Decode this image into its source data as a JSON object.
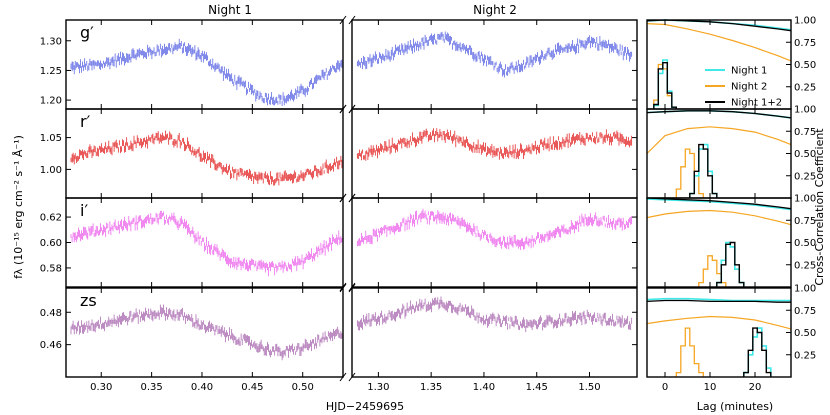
{
  "figure": {
    "night_titles": [
      "Night 1",
      "Night 2"
    ],
    "xlabel": "HJD−2459695",
    "ylabel_left": "fλ (10⁻¹⁵ erg cm⁻² s⁻¹ Å⁻¹)",
    "ylabel_right": "Cross-Correlation Coefficient",
    "xlabel_right": "Lag (minutes)"
  },
  "chart_data": {
    "type": "line",
    "light_curves": {
      "night1_xlim": [
        0.265,
        0.54
      ],
      "night2_xlim": [
        1.275,
        1.545
      ],
      "night1_xticks": [
        "0.30",
        "0.35",
        "0.40",
        "0.45",
        "0.50"
      ],
      "night2_xticks": [
        "1.30",
        "1.35",
        "1.40",
        "1.45",
        "1.50"
      ],
      "panels": [
        {
          "band": "g′",
          "color": "#4a56e0",
          "ylim": [
            1.185,
            1.335
          ],
          "yticks": [
            "1.20",
            "1.25",
            "1.30"
          ],
          "night1": {
            "x": [
              0.27,
              0.3,
              0.33,
              0.36,
              0.38,
              0.4,
              0.43,
              0.46,
              0.48,
              0.5,
              0.52,
              0.54
            ],
            "y": [
              1.255,
              1.26,
              1.275,
              1.285,
              1.29,
              1.275,
              1.235,
              1.205,
              1.2,
              1.215,
              1.24,
              1.265
            ]
          },
          "night2": {
            "x": [
              1.28,
              1.31,
              1.34,
              1.36,
              1.38,
              1.4,
              1.42,
              1.44,
              1.46,
              1.48,
              1.5,
              1.52,
              1.54
            ],
            "y": [
              1.26,
              1.275,
              1.295,
              1.305,
              1.29,
              1.27,
              1.25,
              1.26,
              1.28,
              1.285,
              1.3,
              1.29,
              1.275
            ]
          }
        },
        {
          "band": "r′",
          "color": "#e01010",
          "ylim": [
            0.955,
            1.095
          ],
          "yticks": [
            "1.00",
            "1.05"
          ],
          "night1": {
            "x": [
              0.27,
              0.3,
              0.33,
              0.36,
              0.38,
              0.4,
              0.43,
              0.46,
              0.48,
              0.5,
              0.52,
              0.54
            ],
            "y": [
              1.02,
              1.03,
              1.04,
              1.05,
              1.045,
              1.02,
              0.995,
              0.985,
              0.985,
              0.99,
              1.0,
              1.015
            ]
          },
          "night2": {
            "x": [
              1.28,
              1.31,
              1.34,
              1.36,
              1.38,
              1.4,
              1.42,
              1.44,
              1.46,
              1.48,
              1.5,
              1.52,
              1.54
            ],
            "y": [
              1.02,
              1.035,
              1.05,
              1.055,
              1.045,
              1.03,
              1.025,
              1.03,
              1.04,
              1.045,
              1.05,
              1.05,
              1.045
            ]
          }
        },
        {
          "band": "i′",
          "color": "#ea55ea",
          "ylim": [
            0.565,
            0.635
          ],
          "yticks": [
            "0.58",
            "0.60",
            "0.62"
          ],
          "night1": {
            "x": [
              0.27,
              0.3,
              0.33,
              0.36,
              0.38,
              0.4,
              0.43,
              0.46,
              0.48,
              0.5,
              0.52,
              0.54
            ],
            "y": [
              0.605,
              0.61,
              0.615,
              0.62,
              0.615,
              0.6,
              0.585,
              0.58,
              0.58,
              0.585,
              0.595,
              0.605
            ]
          },
          "night2": {
            "x": [
              1.28,
              1.31,
              1.34,
              1.36,
              1.38,
              1.4,
              1.42,
              1.44,
              1.46,
              1.48,
              1.5,
              1.52,
              1.54
            ],
            "y": [
              0.6,
              0.61,
              0.62,
              0.62,
              0.615,
              0.605,
              0.6,
              0.6,
              0.605,
              0.61,
              0.62,
              0.615,
              0.615
            ]
          }
        },
        {
          "band": "zs",
          "color": "#a05aa8",
          "ylim": [
            0.44,
            0.495
          ],
          "yticks": [
            "0.46",
            "0.48"
          ],
          "night1": {
            "x": [
              0.27,
              0.3,
              0.33,
              0.36,
              0.38,
              0.4,
              0.43,
              0.46,
              0.48,
              0.5,
              0.52,
              0.54
            ],
            "y": [
              0.47,
              0.473,
              0.477,
              0.48,
              0.478,
              0.472,
              0.465,
              0.458,
              0.455,
              0.458,
              0.463,
              0.468
            ]
          },
          "night2": {
            "x": [
              1.28,
              1.31,
              1.34,
              1.36,
              1.38,
              1.4,
              1.42,
              1.44,
              1.46,
              1.48,
              1.5,
              1.52,
              1.54
            ],
            "y": [
              0.473,
              0.478,
              0.484,
              0.486,
              0.482,
              0.476,
              0.474,
              0.472,
              0.474,
              0.476,
              0.477,
              0.475,
              0.473
            ]
          }
        }
      ]
    },
    "cross_correlation": {
      "xlim": [
        -4,
        28
      ],
      "xticks": [
        0,
        10,
        20
      ],
      "ylim": [
        0,
        1.0
      ],
      "yticks": [
        "0.25",
        "0.50",
        "0.75",
        "1.00"
      ],
      "legend": [
        "Night 1",
        "Night 2",
        "Night 1+2"
      ],
      "legend_location": "center-right, top panel",
      "colors": {
        "night1": "#40e8e8",
        "night2": "#f5a623",
        "combined": "#000000"
      },
      "panels": [
        {
          "band": "g′",
          "ccf_night1": {
            "lag": [
              -4,
              0,
              5,
              10,
              15,
              20,
              25,
              28
            ],
            "r": [
              0.99,
              1.0,
              0.99,
              0.98,
              0.96,
              0.94,
              0.91,
              0.89
            ]
          },
          "ccf_night2": {
            "lag": [
              -4,
              0,
              5,
              10,
              15,
              20,
              25,
              28
            ],
            "r": [
              0.96,
              0.95,
              0.9,
              0.84,
              0.77,
              0.69,
              0.6,
              0.54
            ]
          },
          "ccf_combined": {
            "lag": [
              -4,
              0,
              5,
              10,
              15,
              20,
              25,
              28
            ],
            "r": [
              0.99,
              1.0,
              0.99,
              0.98,
              0.96,
              0.93,
              0.9,
              0.88
            ]
          },
          "hist_night1": {
            "lag": [
              -2,
              -1,
              0,
              1,
              2
            ],
            "h": [
              0.04,
              0.4,
              0.55,
              0.2,
              0.02
            ]
          },
          "hist_night2": {
            "lag": [
              -2,
              -1,
              0,
              1,
              2
            ],
            "h": [
              0.1,
              0.5,
              0.45,
              0.15,
              0.02
            ]
          },
          "hist_combined": {
            "lag": [
              -2,
              -1,
              0,
              1,
              2
            ],
            "h": [
              0.05,
              0.45,
              0.52,
              0.18,
              0.02
            ]
          }
        },
        {
          "band": "r′",
          "ccf_night1": {
            "lag": [
              -4,
              0,
              5,
              10,
              15,
              20,
              25,
              28
            ],
            "r": [
              0.96,
              0.97,
              0.98,
              0.98,
              0.97,
              0.95,
              0.92,
              0.9
            ]
          },
          "ccf_night2": {
            "lag": [
              -4,
              0,
              5,
              10,
              15,
              20,
              25,
              28
            ],
            "r": [
              0.5,
              0.7,
              0.78,
              0.8,
              0.78,
              0.74,
              0.66,
              0.6
            ]
          },
          "ccf_combined": {
            "lag": [
              -4,
              0,
              5,
              10,
              15,
              20,
              25,
              28
            ],
            "r": [
              0.96,
              0.97,
              0.98,
              0.98,
              0.97,
              0.95,
              0.92,
              0.9
            ]
          },
          "hist_night1": {
            "lag": [
              6,
              7,
              8,
              9,
              10,
              11
            ],
            "h": [
              0.05,
              0.25,
              0.55,
              0.6,
              0.3,
              0.05
            ]
          },
          "hist_night2": {
            "lag": [
              3,
              4,
              5,
              6,
              7,
              8
            ],
            "h": [
              0.1,
              0.35,
              0.55,
              0.5,
              0.25,
              0.05
            ]
          },
          "hist_combined": {
            "lag": [
              6,
              7,
              8,
              9,
              10,
              11
            ],
            "h": [
              0.05,
              0.3,
              0.6,
              0.55,
              0.25,
              0.05
            ]
          }
        },
        {
          "band": "i′",
          "ccf_night1": {
            "lag": [
              -4,
              0,
              5,
              10,
              15,
              20,
              25,
              28
            ],
            "r": [
              0.99,
              0.98,
              0.97,
              0.96,
              0.94,
              0.92,
              0.89,
              0.87
            ]
          },
          "ccf_night2": {
            "lag": [
              -4,
              0,
              5,
              10,
              15,
              20,
              25,
              28
            ],
            "r": [
              0.78,
              0.82,
              0.85,
              0.86,
              0.84,
              0.8,
              0.74,
              0.7
            ]
          },
          "ccf_combined": {
            "lag": [
              -4,
              0,
              5,
              10,
              15,
              20,
              25,
              28
            ],
            "r": [
              1.0,
              0.99,
              0.98,
              0.97,
              0.95,
              0.93,
              0.9,
              0.88
            ]
          },
          "hist_night1": {
            "lag": [
              12,
              13,
              14,
              15,
              16,
              17
            ],
            "h": [
              0.05,
              0.3,
              0.5,
              0.45,
              0.2,
              0.05
            ]
          },
          "hist_night2": {
            "lag": [
              8,
              9,
              10,
              11,
              12,
              13
            ],
            "h": [
              0.05,
              0.2,
              0.35,
              0.3,
              0.15,
              0.05
            ]
          },
          "hist_combined": {
            "lag": [
              12,
              13,
              14,
              15,
              16,
              17
            ],
            "h": [
              0.05,
              0.25,
              0.48,
              0.5,
              0.25,
              0.05
            ]
          }
        },
        {
          "band": "zs",
          "ccf_night1": {
            "lag": [
              -4,
              0,
              5,
              10,
              15,
              20,
              25,
              28
            ],
            "r": [
              0.87,
              0.88,
              0.88,
              0.87,
              0.86,
              0.86,
              0.86,
              0.86
            ]
          },
          "ccf_night2": {
            "lag": [
              -4,
              0,
              5,
              10,
              15,
              20,
              25,
              28
            ],
            "r": [
              0.6,
              0.63,
              0.66,
              0.68,
              0.67,
              0.64,
              0.58,
              0.54
            ]
          },
          "ccf_combined": {
            "lag": [
              -4,
              0,
              5,
              10,
              15,
              20,
              25,
              28
            ],
            "r": [
              0.85,
              0.86,
              0.86,
              0.85,
              0.85,
              0.85,
              0.84,
              0.84
            ]
          },
          "hist_night1": {
            "lag": [
              18,
              19,
              20,
              21,
              22,
              23
            ],
            "h": [
              0.05,
              0.25,
              0.45,
              0.55,
              0.35,
              0.1
            ]
          },
          "hist_night2": {
            "lag": [
              3,
              4,
              5,
              6,
              7,
              8
            ],
            "h": [
              0.05,
              0.35,
              0.55,
              0.35,
              0.15,
              0.05
            ]
          },
          "hist_combined": {
            "lag": [
              18,
              19,
              20,
              21,
              22,
              23
            ],
            "h": [
              0.05,
              0.3,
              0.55,
              0.5,
              0.3,
              0.05
            ]
          }
        }
      ]
    }
  }
}
